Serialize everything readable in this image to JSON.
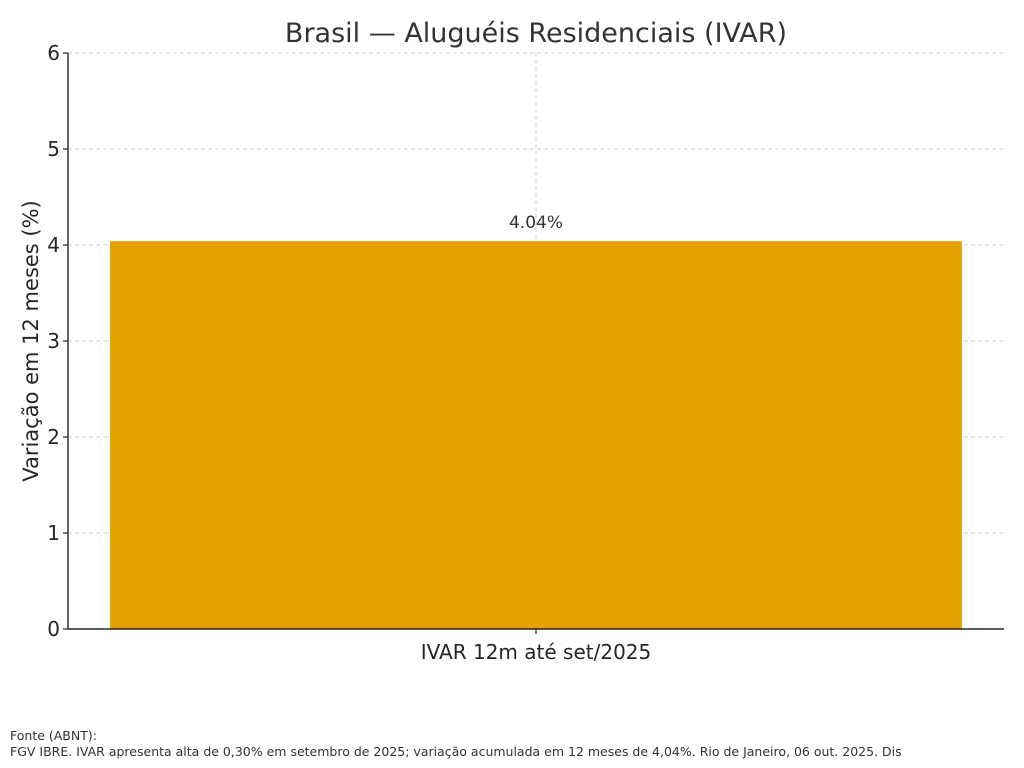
{
  "chart_data": {
    "type": "bar",
    "title": "Brasil — Aluguéis Residenciais (IVAR)",
    "xlabel": "",
    "ylabel": "Variação em 12 meses (%)",
    "categories": [
      "IVAR 12m até set/2025"
    ],
    "values": [
      4.04
    ],
    "data_labels": [
      "4.04%"
    ],
    "ylim": [
      0,
      6
    ],
    "yticks": [
      0,
      1,
      2,
      3,
      4,
      5,
      6
    ],
    "grid": true,
    "bar_color": "#E3A000"
  },
  "footer": {
    "source_label": "Fonte (ABNT):",
    "source_text": "FGV IBRE. IVAR apresenta alta de 0,30% em setembro de 2025; variação acumulada em 12 meses de 4,04%. Rio de Janeiro, 06 out. 2025. Dis"
  }
}
